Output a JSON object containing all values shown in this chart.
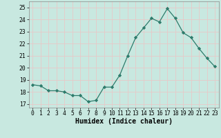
{
  "x": [
    0,
    1,
    2,
    3,
    4,
    5,
    6,
    7,
    8,
    9,
    10,
    11,
    12,
    13,
    14,
    15,
    16,
    17,
    18,
    19,
    20,
    21,
    22,
    23
  ],
  "y": [
    18.6,
    18.5,
    18.1,
    18.1,
    18.0,
    17.7,
    17.7,
    17.2,
    17.3,
    18.4,
    18.4,
    19.4,
    21.0,
    22.5,
    23.3,
    24.1,
    23.8,
    24.9,
    24.1,
    22.9,
    22.5,
    21.6,
    20.8,
    20.1
  ],
  "xlabel": "Humidex (Indice chaleur)",
  "xlim": [
    -0.5,
    23.5
  ],
  "ylim": [
    16.7,
    25.5
  ],
  "yticks": [
    17,
    18,
    19,
    20,
    21,
    22,
    23,
    24,
    25
  ],
  "xticks": [
    0,
    1,
    2,
    3,
    4,
    5,
    6,
    7,
    8,
    9,
    10,
    11,
    12,
    13,
    14,
    15,
    16,
    17,
    18,
    19,
    20,
    21,
    22,
    23
  ],
  "line_color": "#2d7b6b",
  "marker": "D",
  "marker_size": 2.2,
  "bg_color": "#c8e8e0",
  "grid_color": "#e8c8c8",
  "tick_fontsize": 5.8,
  "label_fontsize": 7.0,
  "line_width": 0.9
}
